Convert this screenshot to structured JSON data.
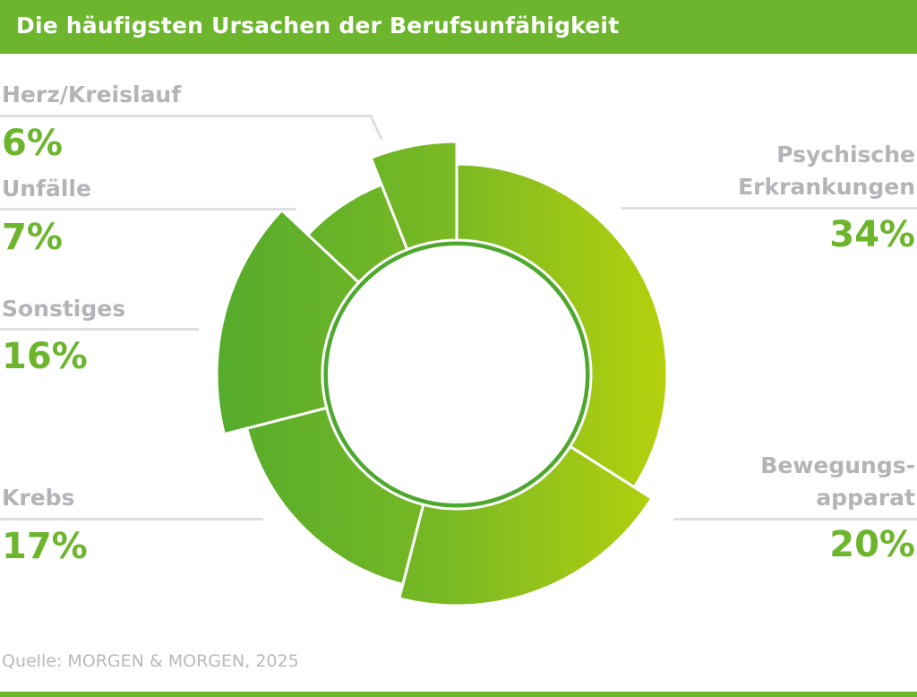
{
  "title": "Die häufigsten Ursachen der Berufsunfähigkeit",
  "source": "Quelle: MORGEN & MORGEN, 2025",
  "colors": {
    "brand_green": "#6cb52d",
    "value_green": "#6cb52d",
    "label_gray": "#b3b3b8",
    "gradient_dark": "#55ab2c",
    "gradient_light": "#b9d20b"
  },
  "chart_data": {
    "type": "pie",
    "style": "donut",
    "title": "Die häufigsten Ursachen der Berufsunfähigkeit",
    "unit": "%",
    "categories": [
      "Psychische Erkrankungen",
      "Bewegungsapparat",
      "Krebs",
      "Sonstiges",
      "Unfälle",
      "Herz/Kreislauf"
    ],
    "values": [
      34,
      20,
      17,
      16,
      7,
      6
    ],
    "labels": [
      {
        "lines": [
          "Psychische",
          "Erkrankungen"
        ],
        "value_text": "34%"
      },
      {
        "lines": [
          "Bewegungs-",
          "apparat"
        ],
        "value_text": "20%"
      },
      {
        "lines": [
          "Krebs"
        ],
        "value_text": "17%"
      },
      {
        "lines": [
          "Sonstiges"
        ],
        "value_text": "16%"
      },
      {
        "lines": [
          "Unfälle"
        ],
        "value_text": "7%"
      },
      {
        "lines": [
          "Herz/Kreislauf"
        ],
        "value_text": "6%"
      }
    ]
  }
}
